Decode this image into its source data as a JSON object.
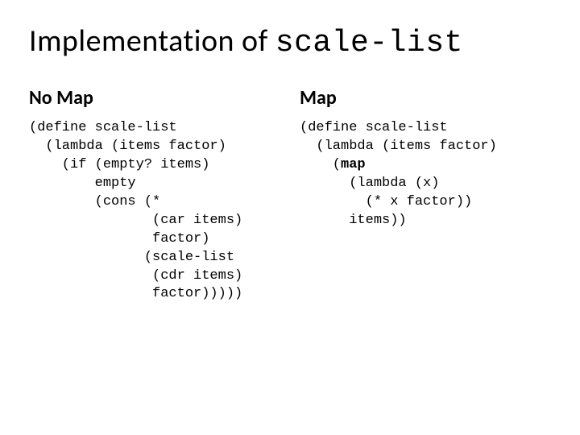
{
  "title_prefix": "Implementation of ",
  "title_code": "scale-list",
  "left": {
    "header": "No Map",
    "lines": [
      "(define scale-list",
      "  (lambda (items factor)",
      "    (if (empty? items)",
      "        empty",
      "        (cons (*",
      "               (car items)",
      "               factor)",
      "              (scale-list",
      "               (cdr items)",
      "               factor)))))"
    ]
  },
  "right": {
    "header": "Map",
    "lines_before_bold": [
      "(define scale-list",
      "  (lambda (items factor)",
      "    ("
    ],
    "bold_word": "map",
    "lines_after_bold": [
      "",
      "      (lambda (x)",
      "        (* x factor))",
      "      items))"
    ]
  }
}
